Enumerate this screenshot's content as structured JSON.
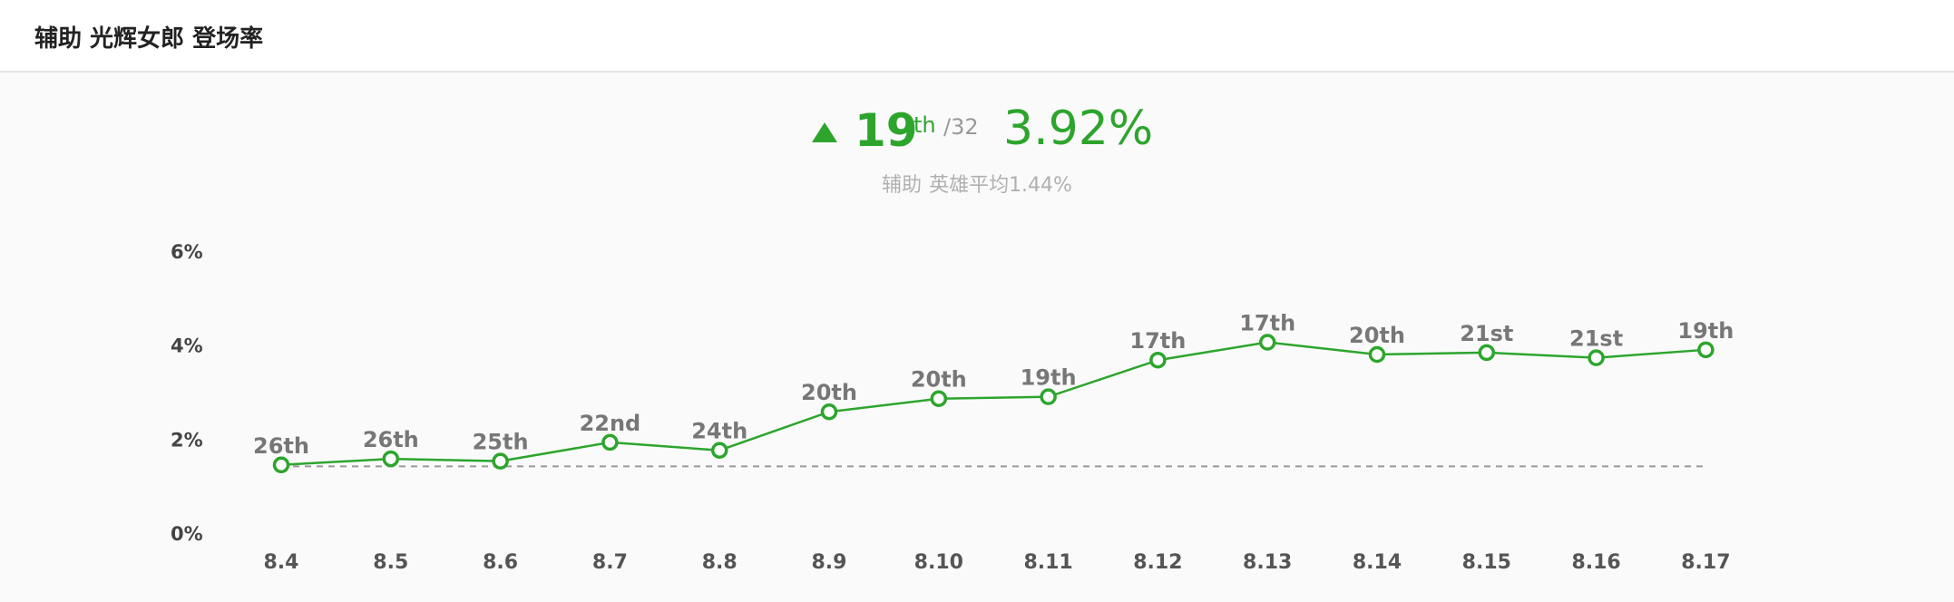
{
  "header": {
    "title": "辅助 光辉女郎 登场率"
  },
  "summary": {
    "trend": "up",
    "rank": "19",
    "rank_suffix": "th",
    "rank_total": "/32",
    "rate": "3.92%",
    "avg_role": "辅助",
    "avg_text": "英雄平均1.44%"
  },
  "colors": {
    "accent": "#2da52d",
    "avg_line": "#999999"
  },
  "chart_data": {
    "type": "line",
    "title": "",
    "xlabel": "",
    "ylabel": "",
    "ylim": [
      0,
      6
    ],
    "yticks": [
      "0%",
      "2%",
      "4%",
      "6%"
    ],
    "ytick_values": [
      0,
      2,
      4,
      6
    ],
    "grid": false,
    "categories": [
      "8.4",
      "8.5",
      "8.6",
      "8.7",
      "8.8",
      "8.9",
      "8.10",
      "8.11",
      "8.12",
      "8.13",
      "8.14",
      "8.15",
      "8.16",
      "8.17"
    ],
    "series": [
      {
        "values": [
          1.47,
          1.6,
          1.55,
          1.95,
          1.78,
          2.6,
          2.88,
          2.92,
          3.7,
          4.08,
          3.82,
          3.86,
          3.75,
          3.92
        ],
        "labels": [
          "26th",
          "26th",
          "25th",
          "22nd",
          "24th",
          "20th",
          "20th",
          "19th",
          "17th",
          "17th",
          "20th",
          "21st",
          "21st",
          "19th"
        ]
      }
    ],
    "average": 1.44
  }
}
